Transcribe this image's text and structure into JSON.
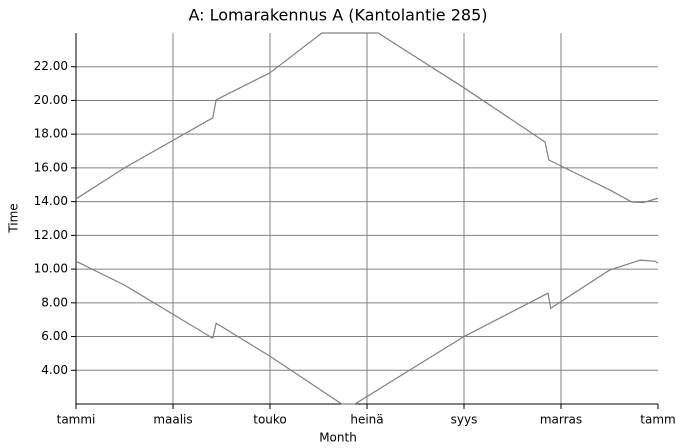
{
  "chart_data": {
    "type": "line",
    "title": "A: Lomarakennus A (Kantolantie 285)",
    "x_label": "Month",
    "y_label": "Time",
    "xlim": [
      0,
      12
    ],
    "xticks": [
      {
        "value": 0,
        "label": "tammi"
      },
      {
        "value": 2,
        "label": "maalis"
      },
      {
        "value": 4,
        "label": "touko"
      },
      {
        "value": 6,
        "label": "heinä"
      },
      {
        "value": 8,
        "label": "syys"
      },
      {
        "value": 10,
        "label": "marras"
      },
      {
        "value": 12,
        "label": "tamm"
      }
    ],
    "ylim": [
      2,
      24
    ],
    "yticks": [
      {
        "value": 4,
        "label": "4.00"
      },
      {
        "value": 6,
        "label": "6.00"
      },
      {
        "value": 8,
        "label": "8.00"
      },
      {
        "value": 10,
        "label": "10.00"
      },
      {
        "value": 12,
        "label": "12.00"
      },
      {
        "value": 14,
        "label": "14.00"
      },
      {
        "value": 16,
        "label": "16.00"
      },
      {
        "value": 18,
        "label": "18.00"
      },
      {
        "value": 20,
        "label": "20.00"
      },
      {
        "value": 22,
        "label": "22.00"
      }
    ],
    "grid": true,
    "series": [
      {
        "color": "#808080",
        "x": [
          0,
          1,
          2.82,
          2.89,
          4,
          5.07,
          6.23,
          8,
          9.67,
          9.75,
          11,
          11.46,
          11.7,
          12
        ],
        "values": [
          14.16,
          16.0,
          18.97,
          20.04,
          21.64,
          24,
          24,
          20.75,
          17.54,
          16.47,
          14.7,
          13.98,
          13.95,
          14.2
        ]
      },
      {
        "color": "#808080",
        "x": [
          0,
          1,
          2.82,
          2.89,
          4,
          5.48,
          5.75,
          8,
          9.73,
          9.79,
          11,
          11.63,
          11.94,
          12
        ],
        "values": [
          10.47,
          9.05,
          5.9,
          6.79,
          4.83,
          2,
          2,
          6.0,
          8.57,
          7.68,
          9.94,
          10.53,
          10.47,
          10.35
        ]
      }
    ]
  }
}
